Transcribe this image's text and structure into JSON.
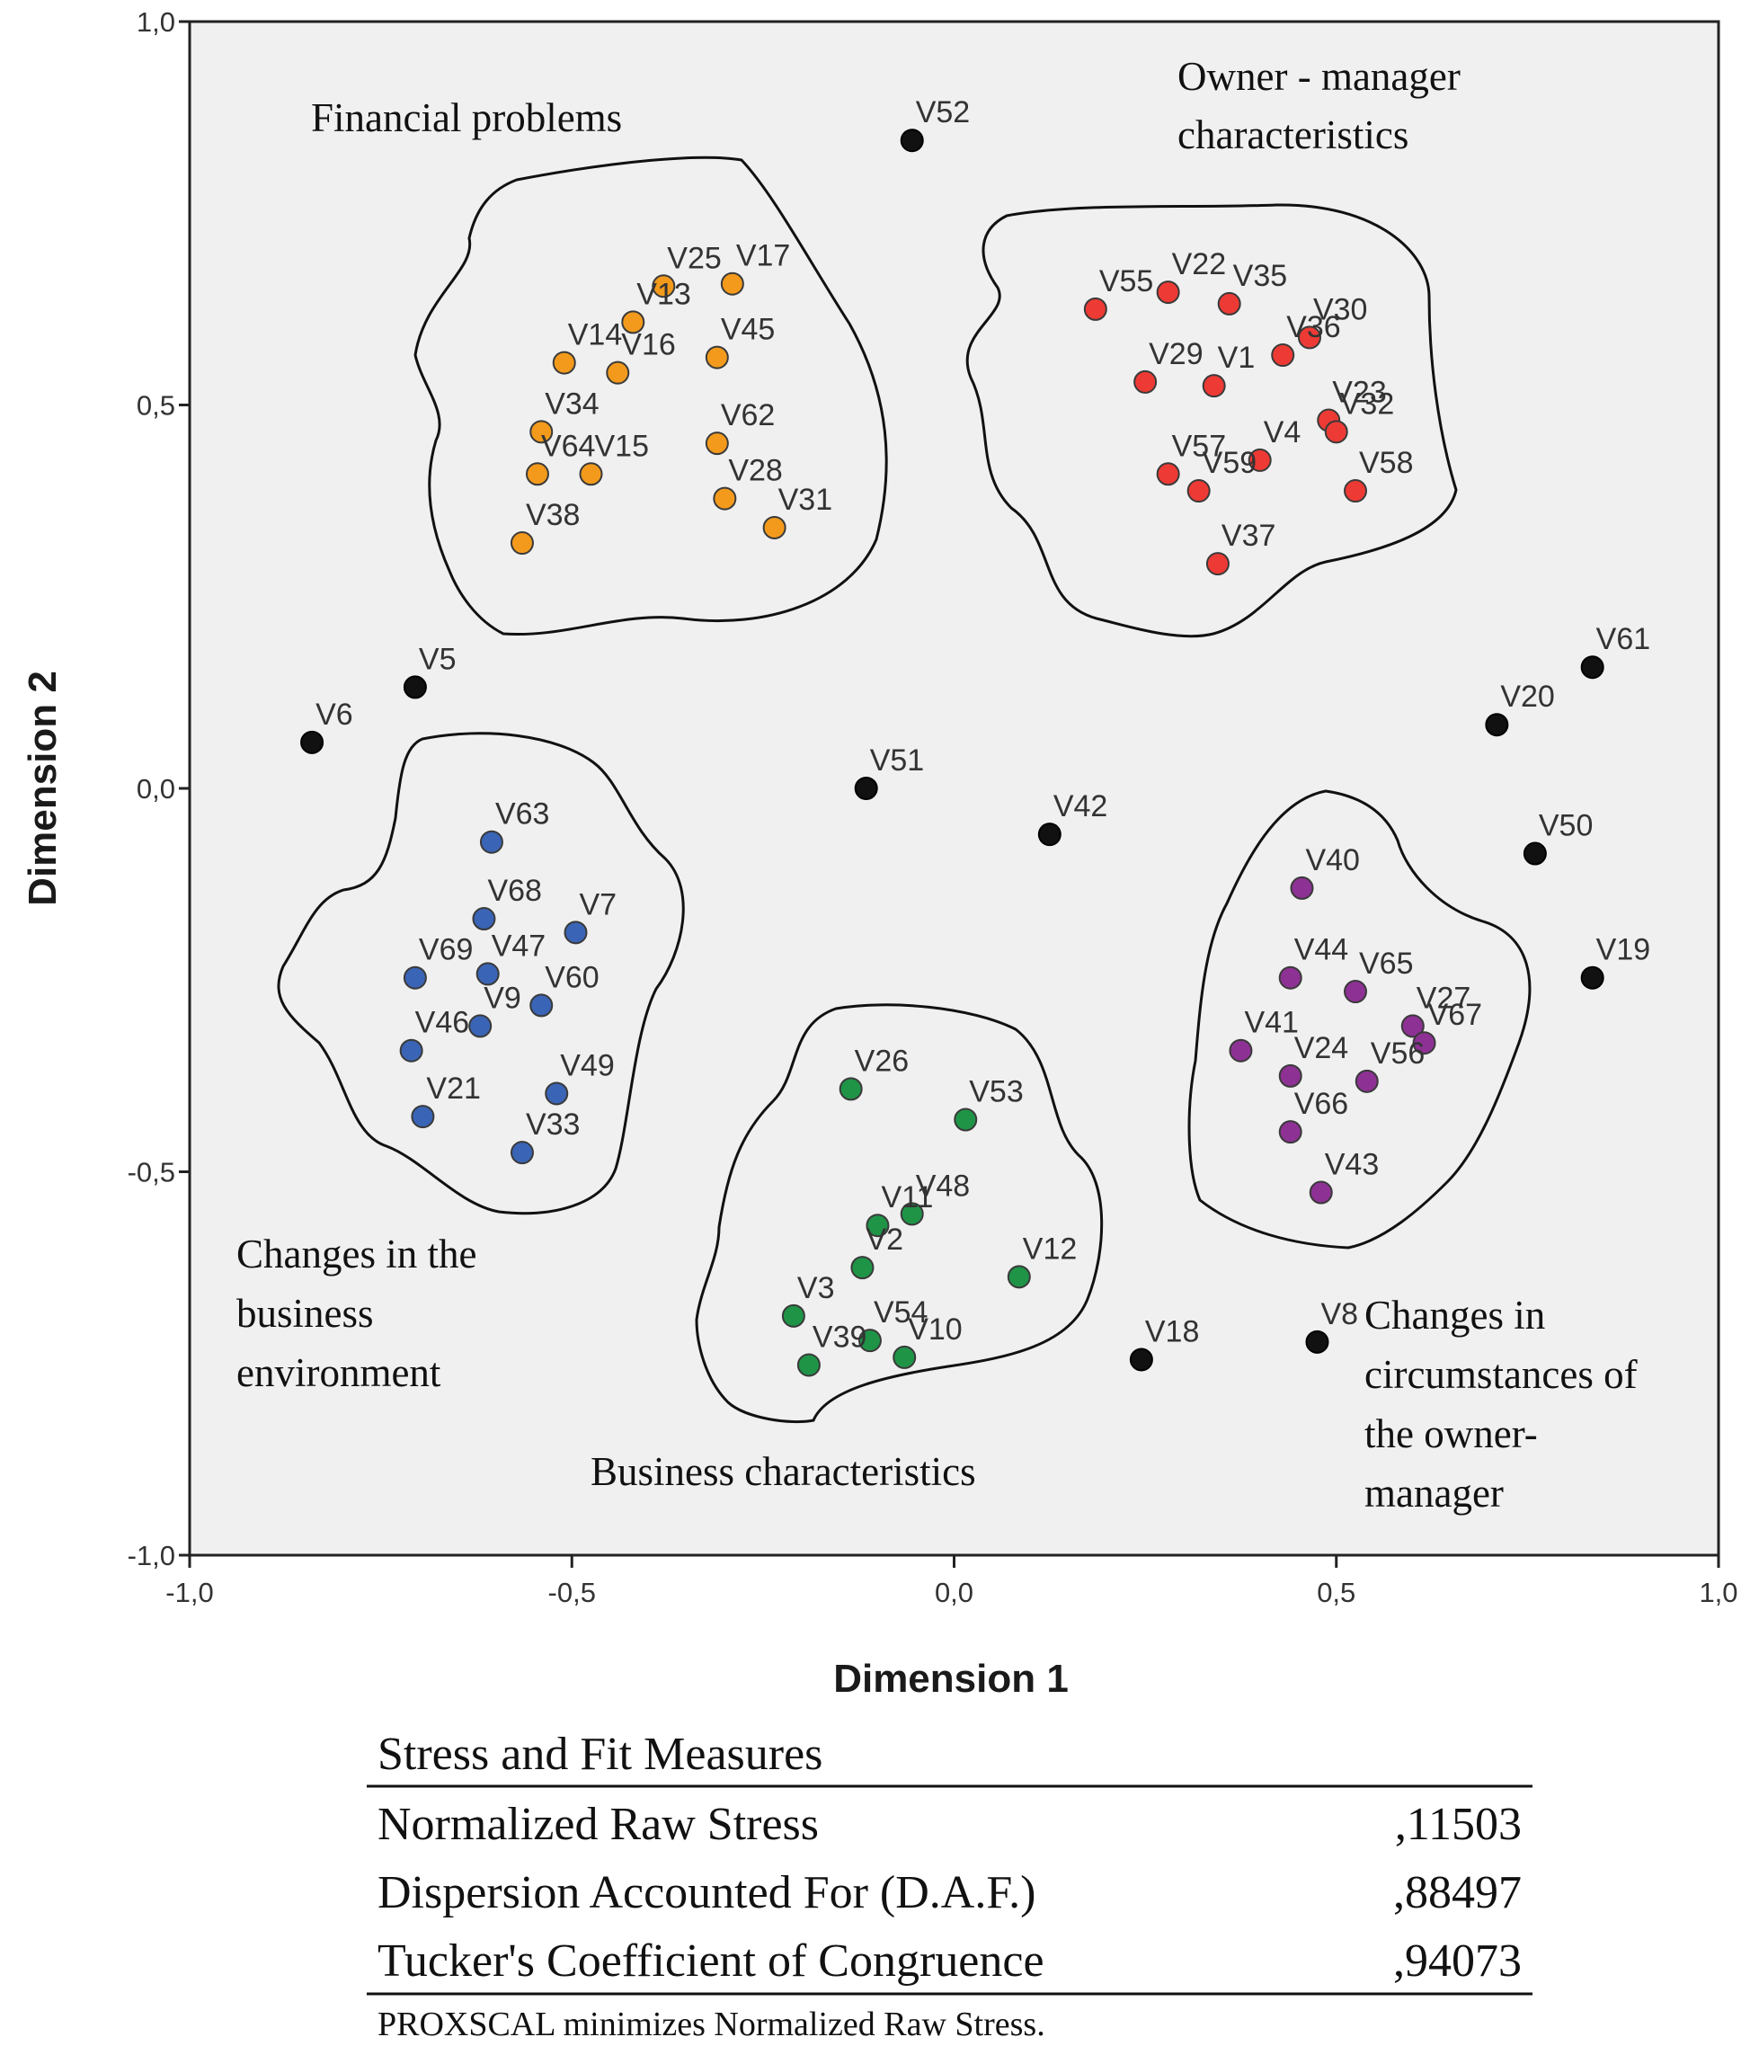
{
  "chart_data": {
    "type": "scatter",
    "xlabel": "Dimension 1",
    "ylabel": "Dimension 2",
    "xlim": [
      -1.0,
      1.0
    ],
    "ylim": [
      -1.0,
      1.0
    ],
    "xticks": [
      {
        "value": -1.0,
        "label": "-1,0"
      },
      {
        "value": -0.5,
        "label": "-0,5"
      },
      {
        "value": 0.0,
        "label": "0,0"
      },
      {
        "value": 0.5,
        "label": "0,5"
      },
      {
        "value": 1.0,
        "label": "1,0"
      }
    ],
    "yticks": [
      {
        "value": 1.0,
        "label": "1,0"
      },
      {
        "value": 0.5,
        "label": "0,5"
      },
      {
        "value": 0.0,
        "label": "0,0"
      },
      {
        "value": -0.5,
        "label": "-0,5"
      },
      {
        "value": -1.0,
        "label": "-1,0"
      }
    ],
    "grid": false,
    "colors": {
      "financial": "#f39a1c",
      "owner": "#ee3a34",
      "environment": "#3a64b5",
      "business": "#1f9447",
      "circumstances": "#8e3194",
      "ungrouped": "#111111",
      "plot_background": "#f0f0f0",
      "marker_edge": "#3a3a3a"
    },
    "groups": [
      {
        "key": "financial",
        "label_lines": [
          "Financial problems"
        ]
      },
      {
        "key": "owner",
        "label_lines": [
          "Owner - manager",
          "characteristics"
        ]
      },
      {
        "key": "environment",
        "label_lines": [
          "Changes in the",
          "business",
          "environment"
        ]
      },
      {
        "key": "business",
        "label_lines": [
          "Business characteristics"
        ]
      },
      {
        "key": "circumstances",
        "label_lines": [
          "Changes in",
          "circumstances of",
          "the owner-",
          "manager"
        ]
      }
    ],
    "points": [
      {
        "id": "V25",
        "x": -0.38,
        "y": 0.655,
        "group": "financial"
      },
      {
        "id": "V17",
        "x": -0.29,
        "y": 0.658,
        "group": "financial"
      },
      {
        "id": "V13",
        "x": -0.42,
        "y": 0.608,
        "group": "financial"
      },
      {
        "id": "V45",
        "x": -0.31,
        "y": 0.562,
        "group": "financial"
      },
      {
        "id": "V14",
        "x": -0.51,
        "y": 0.555,
        "group": "financial"
      },
      {
        "id": "V16",
        "x": -0.44,
        "y": 0.542,
        "group": "financial"
      },
      {
        "id": "V34",
        "x": -0.54,
        "y": 0.465,
        "group": "financial"
      },
      {
        "id": "V62",
        "x": -0.31,
        "y": 0.45,
        "group": "financial"
      },
      {
        "id": "V64",
        "x": -0.545,
        "y": 0.41,
        "group": "financial"
      },
      {
        "id": "V15",
        "x": -0.475,
        "y": 0.41,
        "group": "financial"
      },
      {
        "id": "V28",
        "x": -0.3,
        "y": 0.378,
        "group": "financial"
      },
      {
        "id": "V31",
        "x": -0.235,
        "y": 0.34,
        "group": "financial"
      },
      {
        "id": "V38",
        "x": -0.565,
        "y": 0.32,
        "group": "financial"
      },
      {
        "id": "V55",
        "x": 0.185,
        "y": 0.625,
        "group": "owner"
      },
      {
        "id": "V22",
        "x": 0.28,
        "y": 0.647,
        "group": "owner"
      },
      {
        "id": "V35",
        "x": 0.36,
        "y": 0.632,
        "group": "owner"
      },
      {
        "id": "V30",
        "x": 0.465,
        "y": 0.588,
        "group": "owner"
      },
      {
        "id": "V36",
        "x": 0.43,
        "y": 0.565,
        "group": "owner"
      },
      {
        "id": "V29",
        "x": 0.25,
        "y": 0.53,
        "group": "owner"
      },
      {
        "id": "V1",
        "x": 0.34,
        "y": 0.525,
        "group": "owner"
      },
      {
        "id": "V23",
        "x": 0.49,
        "y": 0.48,
        "group": "owner"
      },
      {
        "id": "V32",
        "x": 0.5,
        "y": 0.465,
        "group": "owner"
      },
      {
        "id": "V4",
        "x": 0.4,
        "y": 0.428,
        "group": "owner"
      },
      {
        "id": "V57",
        "x": 0.28,
        "y": 0.41,
        "group": "owner"
      },
      {
        "id": "V58",
        "x": 0.525,
        "y": 0.388,
        "group": "owner"
      },
      {
        "id": "V59",
        "x": 0.32,
        "y": 0.388,
        "group": "owner"
      },
      {
        "id": "V37",
        "x": 0.345,
        "y": 0.293,
        "group": "owner"
      },
      {
        "id": "V63",
        "x": -0.605,
        "y": -0.07,
        "group": "environment"
      },
      {
        "id": "V68",
        "x": -0.615,
        "y": -0.17,
        "group": "environment"
      },
      {
        "id": "V7",
        "x": -0.495,
        "y": -0.188,
        "group": "environment"
      },
      {
        "id": "V47",
        "x": -0.61,
        "y": -0.242,
        "group": "environment"
      },
      {
        "id": "V69",
        "x": -0.705,
        "y": -0.247,
        "group": "environment"
      },
      {
        "id": "V60",
        "x": -0.54,
        "y": -0.283,
        "group": "environment"
      },
      {
        "id": "V9",
        "x": -0.62,
        "y": -0.31,
        "group": "environment"
      },
      {
        "id": "V46",
        "x": -0.71,
        "y": -0.342,
        "group": "environment"
      },
      {
        "id": "V49",
        "x": -0.52,
        "y": -0.398,
        "group": "environment"
      },
      {
        "id": "V21",
        "x": -0.695,
        "y": -0.428,
        "group": "environment"
      },
      {
        "id": "V33",
        "x": -0.565,
        "y": -0.475,
        "group": "environment"
      },
      {
        "id": "V26",
        "x": -0.135,
        "y": -0.392,
        "group": "business"
      },
      {
        "id": "V53",
        "x": 0.015,
        "y": -0.432,
        "group": "business"
      },
      {
        "id": "V48",
        "x": -0.055,
        "y": -0.555,
        "group": "business"
      },
      {
        "id": "V11",
        "x": -0.1,
        "y": -0.57,
        "group": "business"
      },
      {
        "id": "V2",
        "x": -0.12,
        "y": -0.625,
        "group": "business"
      },
      {
        "id": "V12",
        "x": 0.085,
        "y": -0.637,
        "group": "business"
      },
      {
        "id": "V3",
        "x": -0.21,
        "y": -0.688,
        "group": "business"
      },
      {
        "id": "V54",
        "x": -0.11,
        "y": -0.72,
        "group": "business"
      },
      {
        "id": "V10",
        "x": -0.065,
        "y": -0.742,
        "group": "business"
      },
      {
        "id": "V39",
        "x": -0.19,
        "y": -0.752,
        "group": "business"
      },
      {
        "id": "V40",
        "x": 0.455,
        "y": -0.13,
        "group": "circumstances"
      },
      {
        "id": "V44",
        "x": 0.44,
        "y": -0.247,
        "group": "circumstances"
      },
      {
        "id": "V65",
        "x": 0.525,
        "y": -0.265,
        "group": "circumstances"
      },
      {
        "id": "V27",
        "x": 0.6,
        "y": -0.31,
        "group": "circumstances"
      },
      {
        "id": "V67",
        "x": 0.615,
        "y": -0.332,
        "group": "circumstances"
      },
      {
        "id": "V41",
        "x": 0.375,
        "y": -0.342,
        "group": "circumstances"
      },
      {
        "id": "V24",
        "x": 0.44,
        "y": -0.375,
        "group": "circumstances"
      },
      {
        "id": "V56",
        "x": 0.54,
        "y": -0.382,
        "group": "circumstances"
      },
      {
        "id": "V66",
        "x": 0.44,
        "y": -0.448,
        "group": "circumstances"
      },
      {
        "id": "V43",
        "x": 0.48,
        "y": -0.527,
        "group": "circumstances"
      },
      {
        "id": "V52",
        "x": -0.055,
        "y": 0.845,
        "group": "ungrouped"
      },
      {
        "id": "V5",
        "x": -0.705,
        "y": 0.132,
        "group": "ungrouped"
      },
      {
        "id": "V6",
        "x": -0.84,
        "y": 0.06,
        "group": "ungrouped"
      },
      {
        "id": "V51",
        "x": -0.115,
        "y": 0.0,
        "group": "ungrouped"
      },
      {
        "id": "V42",
        "x": 0.125,
        "y": -0.06,
        "group": "ungrouped"
      },
      {
        "id": "V61",
        "x": 0.835,
        "y": 0.158,
        "group": "ungrouped"
      },
      {
        "id": "V20",
        "x": 0.71,
        "y": 0.083,
        "group": "ungrouped"
      },
      {
        "id": "V50",
        "x": 0.76,
        "y": -0.085,
        "group": "ungrouped"
      },
      {
        "id": "V19",
        "x": 0.835,
        "y": -0.247,
        "group": "ungrouped"
      },
      {
        "id": "V18",
        "x": 0.245,
        "y": -0.745,
        "group": "ungrouped"
      },
      {
        "id": "V8",
        "x": 0.475,
        "y": -0.722,
        "group": "ungrouped"
      }
    ]
  },
  "fit_table": {
    "title": "Stress and Fit Measures",
    "rows": [
      {
        "label": "Normalized Raw Stress",
        "value": ",11503"
      },
      {
        "label": "Dispersion Accounted For (D.A.F.)",
        "value": ",88497"
      },
      {
        "label": "Tucker's Coefficient of Congruence",
        "value": ",94073"
      }
    ],
    "note": "PROXSCAL minimizes Normalized Raw Stress."
  }
}
